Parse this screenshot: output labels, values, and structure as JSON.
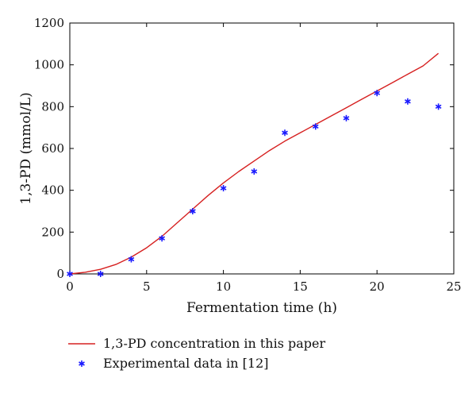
{
  "chart_data": {
    "type": "line",
    "xlabel": "Fermentation time (h)",
    "ylabel": "1,3-PD (mmol/L)",
    "xlim": [
      0,
      25
    ],
    "ylim": [
      0,
      1200
    ],
    "xticks": [
      0,
      5,
      10,
      15,
      20,
      25
    ],
    "yticks": [
      0,
      200,
      400,
      600,
      800,
      1000,
      1200
    ],
    "grid": false,
    "legend_position": "below",
    "series": [
      {
        "name": "1,3-PD concentration in this paper",
        "kind": "line",
        "color": "#d62020",
        "x": [
          0,
          1,
          2,
          3,
          4,
          5,
          6,
          7,
          8,
          9,
          10,
          11,
          12,
          13,
          14,
          15,
          16,
          17,
          18,
          19,
          20,
          21,
          22,
          23,
          24
        ],
        "y": [
          0,
          8,
          22,
          45,
          80,
          125,
          180,
          245,
          310,
          375,
          435,
          490,
          540,
          590,
          635,
          675,
          715,
          755,
          795,
          835,
          875,
          915,
          955,
          995,
          1055
        ]
      },
      {
        "name": "Experimental data in [12]",
        "kind": "scatter",
        "marker": "asterisk",
        "color": "#1a1aff",
        "x": [
          0,
          2,
          4,
          6,
          8,
          10,
          12,
          14,
          16,
          18,
          20,
          22,
          24
        ],
        "y": [
          0,
          0,
          70,
          170,
          300,
          410,
          490,
          675,
          705,
          745,
          865,
          825,
          800
        ]
      }
    ]
  }
}
